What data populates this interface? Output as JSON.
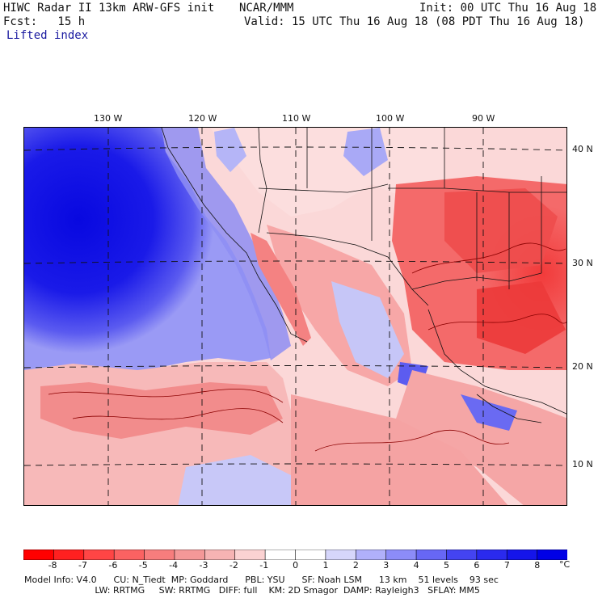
{
  "header": {
    "title": "HIWC Radar II 13km ARW-GFS init",
    "org": "NCAR/MMM",
    "init": "Init: 00 UTC Thu 16 Aug 18",
    "fcst": "Fcst:   15 h",
    "valid": "Valid: 15 UTC Thu 16 Aug 18 (08 PDT Thu 16 Aug 18)",
    "field": "Lifted index"
  },
  "map": {
    "lon_labels": [
      "130 W",
      "120 W",
      "110 W",
      "100 W",
      "90 W"
    ],
    "lat_labels": [
      "40 N",
      "30 N",
      "20 N",
      "10 N"
    ],
    "ocean_color": "#1a1aee",
    "land_warm_color": "#f06a6a"
  },
  "colorbar": {
    "tick_labels": [
      "-8",
      "-7",
      "-6",
      "-5",
      "-4",
      "-3",
      "-2",
      "-1",
      "0",
      "1",
      "2",
      "3",
      "4",
      "5",
      "6",
      "7",
      "8"
    ],
    "unit": "°C",
    "colors": [
      "#ff0000",
      "#ff2020",
      "#ff4545",
      "#fb6262",
      "#f77d7d",
      "#f49898",
      "#f6b3b3",
      "#fbd2d2",
      "#ffffff",
      "#ffffff",
      "#d6d6fb",
      "#b0b0fa",
      "#8c8cf8",
      "#6767f5",
      "#4444f1",
      "#2a2aee",
      "#1515ea",
      "#0000e6"
    ]
  },
  "model_info": {
    "line1": "Model Info: V4.0      CU: N_Tiedt  MP: Goddard      PBL: YSU      SF: Noah LSM      13 km    51 levels    93 sec",
    "line2": "                         LW: RRTMG     SW: RRTMG   DIFF: full    KM: 2D Smagor  DAMP: Rayleigh3   SFLAY: MM5"
  }
}
